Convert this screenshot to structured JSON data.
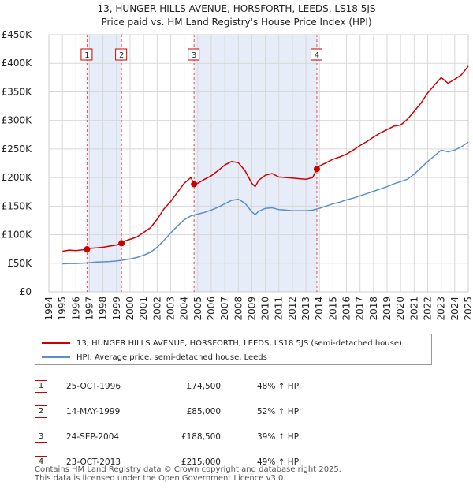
{
  "title_line1": "13, HUNGER HILLS AVENUE, HORSFORTH, LEEDS, LS18 5JS",
  "title_line2": "Price paid vs. HM Land Registry's House Price Index (HPI)",
  "chart_data": {
    "type": "line",
    "title": "13, HUNGER HILLS AVENUE, HORSFORTH, LEEDS, LS18 5JS — Price paid vs. HM Land Registry's House Price Index (HPI)",
    "ylim": [
      0,
      450000
    ],
    "xlim": [
      1994,
      2025
    ],
    "y_ticks": [
      0,
      50000,
      100000,
      150000,
      200000,
      250000,
      300000,
      350000,
      400000,
      450000
    ],
    "y_tick_labels": [
      "£0",
      "£50K",
      "£100K",
      "£150K",
      "£200K",
      "£250K",
      "£300K",
      "£350K",
      "£400K",
      "£450K"
    ],
    "x_ticks": [
      1994,
      1995,
      1996,
      1997,
      1998,
      1999,
      2000,
      2001,
      2002,
      2003,
      2004,
      2005,
      2006,
      2007,
      2008,
      2009,
      2010,
      2011,
      2012,
      2013,
      2014,
      2015,
      2016,
      2017,
      2018,
      2019,
      2020,
      2021,
      2022,
      2023,
      2024,
      2025
    ],
    "series": [
      {
        "name": "13, HUNGER HILLS AVENUE, HORSFORTH, LEEDS, LS18 5JS (semi-detached house)",
        "color": "#cc0000",
        "x": [
          1995.0,
          1995.5,
          1996.0,
          1996.5,
          1996.82,
          1997.0,
          1997.5,
          1998.0,
          1998.5,
          1999.0,
          1999.37,
          1999.5,
          2000.0,
          2000.5,
          2001.0,
          2001.5,
          2002.0,
          2002.5,
          2003.0,
          2003.5,
          2004.0,
          2004.5,
          2004.73,
          2005.0,
          2005.5,
          2006.0,
          2006.5,
          2007.0,
          2007.5,
          2008.0,
          2008.5,
          2009.0,
          2009.25,
          2009.5,
          2010.0,
          2010.5,
          2011.0,
          2011.5,
          2012.0,
          2012.5,
          2013.0,
          2013.5,
          2013.81,
          2014.0,
          2014.5,
          2015.0,
          2015.5,
          2016.0,
          2016.5,
          2017.0,
          2017.5,
          2018.0,
          2018.5,
          2019.0,
          2019.5,
          2020.0,
          2020.5,
          2021.0,
          2021.5,
          2022.0,
          2022.5,
          2023.0,
          2023.5,
          2024.0,
          2024.5,
          2025.0
        ],
        "values": [
          71000,
          73000,
          72000,
          73500,
          74500,
          76000,
          77000,
          78000,
          80000,
          82000,
          85000,
          88000,
          92000,
          96000,
          104000,
          112000,
          127000,
          145000,
          158000,
          174000,
          190000,
          200000,
          188500,
          190000,
          197000,
          203000,
          212000,
          222000,
          228000,
          226000,
          212000,
          190000,
          184000,
          195000,
          204000,
          207000,
          201000,
          200000,
          199000,
          198000,
          197000,
          200000,
          215000,
          220000,
          226000,
          232000,
          236000,
          241000,
          248000,
          256000,
          263000,
          271000,
          278000,
          284000,
          290000,
          292000,
          302000,
          316000,
          330000,
          348000,
          362000,
          375000,
          365000,
          372000,
          380000,
          395000
        ]
      },
      {
        "name": "HPI: Average price, semi-detached house, Leeds",
        "color": "#5b8fc9",
        "x": [
          1995.0,
          1995.5,
          1996.0,
          1996.5,
          1997.0,
          1997.5,
          1998.0,
          1998.5,
          1999.0,
          1999.5,
          2000.0,
          2000.5,
          2001.0,
          2001.5,
          2002.0,
          2002.5,
          2003.0,
          2003.5,
          2004.0,
          2004.5,
          2005.0,
          2005.5,
          2006.0,
          2006.5,
          2007.0,
          2007.5,
          2008.0,
          2008.5,
          2009.0,
          2009.25,
          2009.5,
          2010.0,
          2010.5,
          2011.0,
          2011.5,
          2012.0,
          2012.5,
          2013.0,
          2013.5,
          2014.0,
          2014.5,
          2015.0,
          2015.5,
          2016.0,
          2016.5,
          2017.0,
          2017.5,
          2018.0,
          2018.5,
          2019.0,
          2019.5,
          2020.0,
          2020.5,
          2021.0,
          2021.5,
          2022.0,
          2022.5,
          2023.0,
          2023.5,
          2024.0,
          2024.5,
          2025.0
        ],
        "values": [
          49000,
          49500,
          49500,
          50000,
          51000,
          52000,
          52500,
          53000,
          54000,
          55500,
          57500,
          60000,
          64000,
          69000,
          78000,
          90000,
          103000,
          115000,
          126000,
          133000,
          136000,
          139000,
          143000,
          148000,
          154000,
          160000,
          162000,
          155000,
          140000,
          135000,
          141000,
          146000,
          147000,
          144000,
          143000,
          142000,
          142000,
          142000,
          143000,
          146000,
          150000,
          154000,
          157000,
          161000,
          164000,
          168000,
          172000,
          176000,
          180000,
          184000,
          189000,
          193000,
          197000,
          206000,
          217000,
          228000,
          238000,
          248000,
          245000,
          248000,
          254000,
          262000
        ]
      }
    ],
    "sales": [
      {
        "label": "1",
        "x": 1996.82,
        "value": 74500
      },
      {
        "label": "2",
        "x": 1999.37,
        "value": 85000
      },
      {
        "label": "3",
        "x": 2004.73,
        "value": 188500
      },
      {
        "label": "4",
        "x": 2013.81,
        "value": 215000
      }
    ]
  },
  "legend": {
    "property": "13, HUNGER HILLS AVENUE, HORSFORTH, LEEDS, LS18 5JS (semi-detached house)",
    "hpi": "HPI: Average price, semi-detached house, Leeds"
  },
  "sales_table": [
    {
      "num": "1",
      "date": "25-OCT-1996",
      "price": "£74,500",
      "hpi": "48% ↑ HPI"
    },
    {
      "num": "2",
      "date": "14-MAY-1999",
      "price": "£85,000",
      "hpi": "52% ↑ HPI"
    },
    {
      "num": "3",
      "date": "24-SEP-2004",
      "price": "£188,500",
      "hpi": "39% ↑ HPI"
    },
    {
      "num": "4",
      "date": "23-OCT-2013",
      "price": "£215,000",
      "hpi": "49% ↑ HPI"
    }
  ],
  "footer": {
    "line1": "Contains HM Land Registry data © Crown copyright and database right 2025.",
    "line2": "This data is licensed under the Open Government Licence v3.0."
  },
  "colors": {
    "property_line": "#cc0000",
    "hpi_line": "#5b8fc9",
    "shade": "#e6ecf8",
    "grid": "#d8d8d8"
  }
}
